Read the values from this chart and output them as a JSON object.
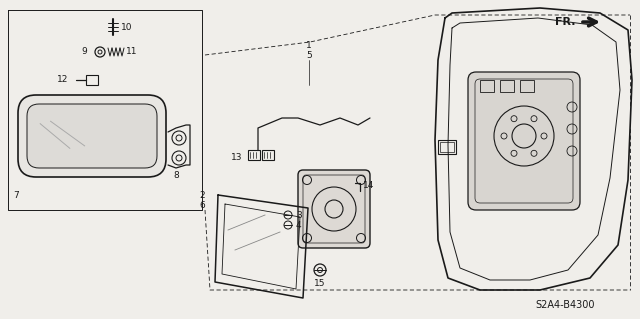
{
  "bg_color": "#f0eeea",
  "line_color": "#1a1a1a",
  "part_code": "S2A4-B4300",
  "fr_label": "FR.",
  "figsize": [
    6.4,
    3.19
  ],
  "dpi": 100
}
